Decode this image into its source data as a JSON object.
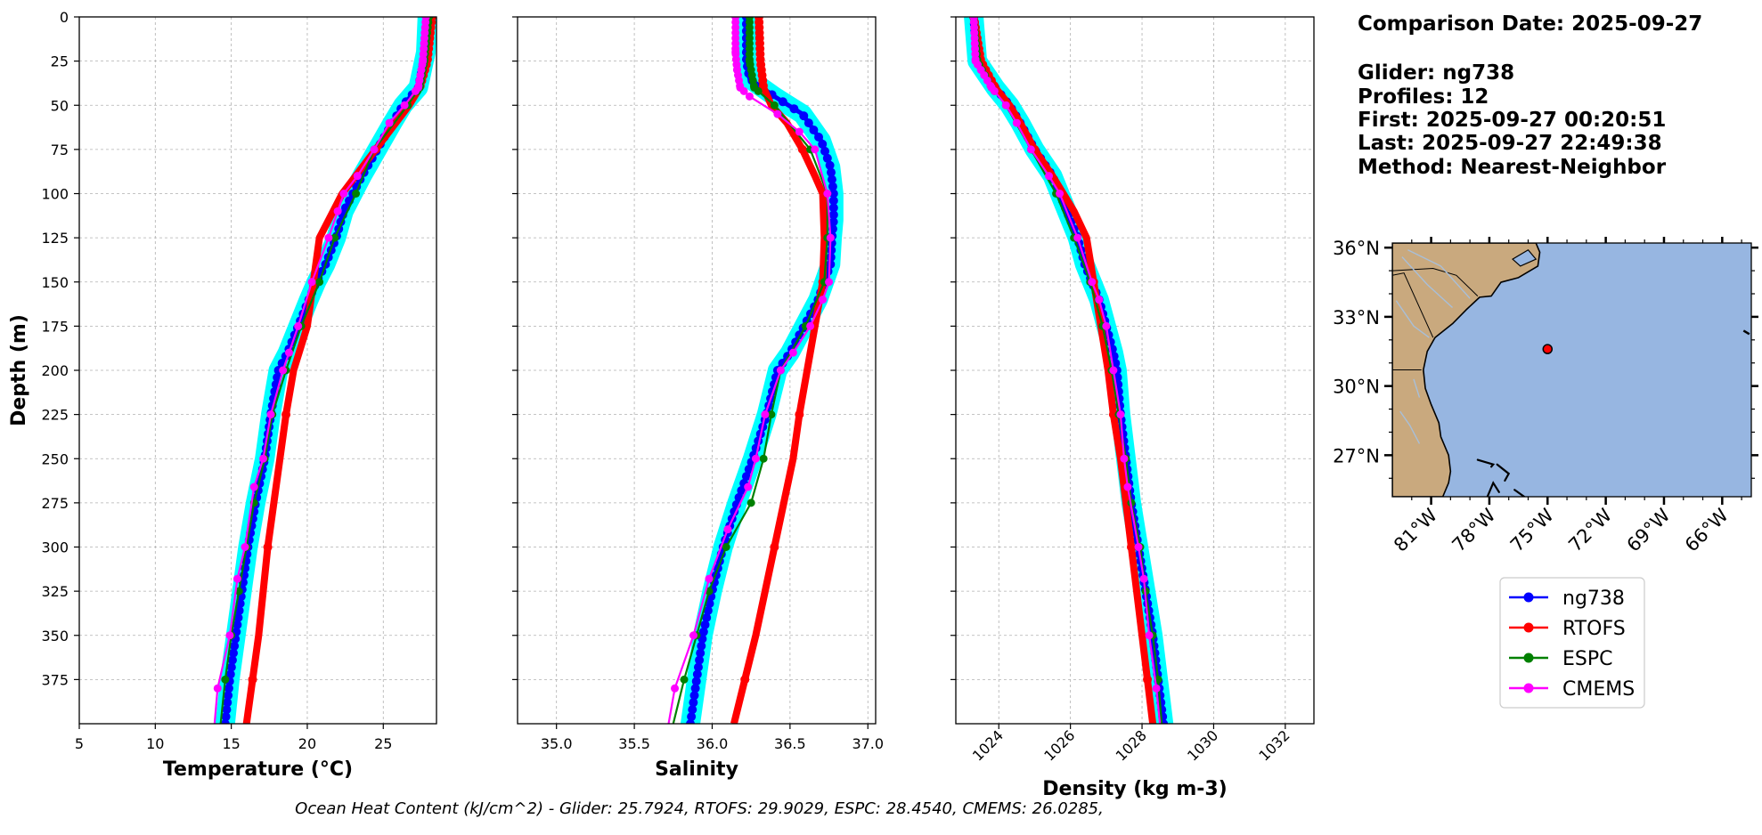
{
  "colors": {
    "glider": "#0000ff",
    "glider_halo": "#00ffff",
    "rtofs": "#ff0000",
    "espc": "#008000",
    "cmems": "#ff00ff",
    "ocean": "#97b6e1",
    "land": "#c9a97e",
    "rivers": "#a8bfd9"
  },
  "info": {
    "comparison_date": "Comparison Date: 2025-09-27",
    "glider": "Glider: ng738",
    "profiles": "Profiles: 12",
    "first": "First: 2025-09-27 00:20:51",
    "last": "Last: 2025-09-27 22:49:38",
    "method": "Method: Nearest-Neighbor"
  },
  "footer": "Ocean Heat Content (kJ/cm^2) - Glider: 25.7924,  RTOFS: 29.9029,  ESPC: 28.4540,  CMEMS: 26.0285,",
  "legend": [
    "ng738",
    "RTOFS",
    "ESPC",
    "CMEMS"
  ],
  "chart_data": [
    {
      "type": "line",
      "title": "",
      "xlabel": "Temperature (°C)",
      "ylabel": "Depth (m)",
      "xlim": [
        5,
        28.5
      ],
      "ylim": [
        400,
        0
      ],
      "xticks": [
        5,
        10,
        15,
        20,
        25
      ],
      "yticks": [
        0,
        25,
        50,
        75,
        100,
        125,
        150,
        175,
        200,
        225,
        250,
        275,
        300,
        325,
        350,
        375
      ],
      "grid": true,
      "series": [
        {
          "name": "ng738",
          "depth": [
            0,
            20,
            40,
            50,
            60,
            75,
            90,
            100,
            110,
            125,
            140,
            150,
            160,
            175,
            190,
            200,
            215,
            225,
            250,
            275,
            300,
            325,
            350,
            375,
            400
          ],
          "values": [
            27.9,
            27.8,
            27.3,
            26.3,
            25.6,
            24.6,
            23.6,
            23.0,
            22.4,
            21.9,
            21.2,
            20.6,
            20.1,
            19.4,
            18.7,
            18.1,
            17.8,
            17.6,
            17.2,
            16.6,
            16.1,
            15.7,
            15.3,
            14.9,
            14.6
          ]
        },
        {
          "name": "RTOFS",
          "depth": [
            0,
            25,
            40,
            50,
            75,
            100,
            125,
            150,
            175,
            200,
            225,
            250,
            275,
            300,
            325,
            350,
            375,
            400
          ],
          "values": [
            28.2,
            27.9,
            27.4,
            26.7,
            24.5,
            22.3,
            20.8,
            20.4,
            20.0,
            19.1,
            18.6,
            18.2,
            17.8,
            17.4,
            17.1,
            16.8,
            16.4,
            16.0
          ]
        },
        {
          "name": "ESPC",
          "depth": [
            0,
            25,
            40,
            50,
            75,
            100,
            125,
            150,
            175,
            200,
            225,
            250,
            275,
            300,
            325,
            350,
            375,
            400
          ],
          "values": [
            28.0,
            27.7,
            27.4,
            26.6,
            24.4,
            23.2,
            21.8,
            20.8,
            19.6,
            18.6,
            17.7,
            17.2,
            16.5,
            16.0,
            15.5,
            15.0,
            14.6,
            14.3
          ]
        },
        {
          "name": "CMEMS",
          "depth": [
            0,
            25,
            40,
            50,
            60,
            75,
            90,
            100,
            110,
            125,
            150,
            175,
            190,
            200,
            225,
            250,
            266,
            300,
            318,
            350,
            380,
            400
          ],
          "values": [
            27.8,
            27.6,
            27.3,
            26.4,
            25.4,
            24.4,
            23.3,
            22.4,
            22.0,
            21.4,
            20.3,
            19.4,
            18.8,
            18.4,
            17.6,
            17.1,
            16.5,
            15.9,
            15.4,
            14.9,
            14.1,
            13.9
          ]
        }
      ]
    },
    {
      "type": "line",
      "title": "",
      "xlabel": "Salinity",
      "ylabel": "",
      "xlim": [
        34.75,
        37.05
      ],
      "ylim": [
        400,
        0
      ],
      "xticks": [
        35.0,
        35.5,
        36.0,
        36.5,
        37.0
      ],
      "xtick_labels": [
        "35.0",
        "35.5",
        "36.0",
        "36.5",
        "37.0"
      ],
      "grid": true,
      "series": [
        {
          "name": "ng738",
          "depth": [
            0,
            25,
            35,
            45,
            55,
            70,
            85,
            100,
            115,
            125,
            140,
            150,
            160,
            175,
            190,
            200,
            225,
            250,
            275,
            300,
            325,
            350,
            375,
            400
          ],
          "values": [
            36.22,
            36.22,
            36.24,
            36.4,
            36.58,
            36.7,
            36.76,
            36.78,
            36.78,
            36.77,
            36.76,
            36.72,
            36.68,
            36.59,
            36.5,
            36.42,
            36.35,
            36.26,
            36.16,
            36.07,
            36.0,
            35.94,
            35.9,
            35.86
          ]
        },
        {
          "name": "RTOFS",
          "depth": [
            0,
            25,
            40,
            50,
            60,
            75,
            90,
            100,
            125,
            150,
            175,
            200,
            225,
            250,
            275,
            300,
            325,
            350,
            375,
            400
          ],
          "values": [
            36.3,
            36.31,
            36.33,
            36.38,
            36.48,
            36.58,
            36.66,
            36.71,
            36.72,
            36.71,
            36.66,
            36.61,
            36.56,
            36.52,
            36.46,
            36.4,
            36.34,
            36.28,
            36.21,
            36.14
          ]
        },
        {
          "name": "ESPC",
          "depth": [
            0,
            25,
            40,
            50,
            75,
            100,
            125,
            150,
            175,
            200,
            225,
            250,
            275,
            300,
            325,
            350,
            375,
            400
          ],
          "values": [
            36.24,
            36.24,
            36.27,
            36.4,
            36.63,
            36.74,
            36.74,
            36.72,
            36.6,
            36.44,
            36.38,
            36.33,
            36.25,
            36.09,
            35.98,
            35.9,
            35.82,
            35.75
          ]
        },
        {
          "name": "CMEMS",
          "depth": [
            0,
            20,
            30,
            40,
            45,
            55,
            65,
            75,
            100,
            125,
            150,
            160,
            175,
            190,
            200,
            225,
            250,
            266,
            290,
            318,
            350,
            380,
            400
          ],
          "values": [
            36.15,
            36.15,
            36.16,
            36.18,
            36.24,
            36.42,
            36.56,
            36.66,
            36.74,
            36.76,
            36.75,
            36.71,
            36.63,
            36.52,
            36.44,
            36.34,
            36.28,
            36.23,
            36.1,
            35.98,
            35.88,
            35.76,
            35.72
          ]
        }
      ]
    },
    {
      "type": "line",
      "title": "",
      "xlabel": "Density (kg m-3)",
      "ylabel": "",
      "xlim": [
        1022.8,
        1032.8
      ],
      "ylim": [
        400,
        0
      ],
      "xticks": [
        1024,
        1026,
        1028,
        1030,
        1032
      ],
      "grid": true,
      "series": [
        {
          "name": "ng738",
          "depth": [
            0,
            25,
            40,
            50,
            60,
            75,
            90,
            100,
            115,
            125,
            140,
            150,
            160,
            175,
            190,
            200,
            225,
            250,
            275,
            300,
            325,
            350,
            375,
            400
          ],
          "values": [
            1023.3,
            1023.4,
            1023.9,
            1024.3,
            1024.6,
            1025.0,
            1025.5,
            1025.7,
            1026.0,
            1026.2,
            1026.4,
            1026.6,
            1026.8,
            1027.0,
            1027.2,
            1027.3,
            1027.4,
            1027.55,
            1027.7,
            1027.9,
            1028.1,
            1028.3,
            1028.45,
            1028.6
          ]
        },
        {
          "name": "RTOFS",
          "depth": [
            0,
            25,
            40,
            50,
            60,
            75,
            90,
            100,
            110,
            125,
            150,
            175,
            200,
            225,
            250,
            275,
            300,
            325,
            350,
            375,
            400
          ],
          "values": [
            1023.3,
            1023.5,
            1023.9,
            1024.3,
            1024.6,
            1025.0,
            1025.5,
            1025.8,
            1026.1,
            1026.45,
            1026.65,
            1026.85,
            1027.05,
            1027.2,
            1027.4,
            1027.55,
            1027.7,
            1027.85,
            1028.0,
            1028.15,
            1028.3
          ]
        },
        {
          "name": "ESPC",
          "depth": [
            0,
            25,
            40,
            50,
            75,
            100,
            125,
            150,
            175,
            200,
            225,
            250,
            275,
            300,
            325,
            350,
            375,
            400
          ],
          "values": [
            1023.3,
            1023.4,
            1023.8,
            1024.2,
            1024.9,
            1025.6,
            1026.1,
            1026.55,
            1026.9,
            1027.15,
            1027.35,
            1027.55,
            1027.7,
            1027.95,
            1028.1,
            1028.3,
            1028.45,
            1028.55
          ]
        },
        {
          "name": "CMEMS",
          "depth": [
            0,
            25,
            40,
            50,
            60,
            75,
            90,
            100,
            125,
            150,
            160,
            175,
            200,
            225,
            250,
            266,
            300,
            318,
            350,
            380,
            400
          ],
          "values": [
            1023.3,
            1023.35,
            1023.8,
            1024.2,
            1024.5,
            1024.9,
            1025.4,
            1025.7,
            1026.2,
            1026.6,
            1026.8,
            1027.0,
            1027.2,
            1027.4,
            1027.5,
            1027.6,
            1027.9,
            1028.05,
            1028.2,
            1028.4,
            1028.5
          ]
        }
      ]
    }
  ],
  "map": {
    "lon_range": [
      -83,
      -64.5
    ],
    "lat_range": [
      25.2,
      36.2
    ],
    "lat_ticks": [
      36,
      33,
      30,
      27
    ],
    "lat_labels": [
      "36°N",
      "33°N",
      "30°N",
      "27°N"
    ],
    "lon_ticks": [
      -81,
      -78,
      -75,
      -72,
      -69,
      -66
    ],
    "lon_labels": [
      "81°W",
      "78°W",
      "75°W",
      "72°W",
      "69°W",
      "66°W"
    ],
    "glider_position": {
      "lon": -75.0,
      "lat": 31.6
    }
  }
}
